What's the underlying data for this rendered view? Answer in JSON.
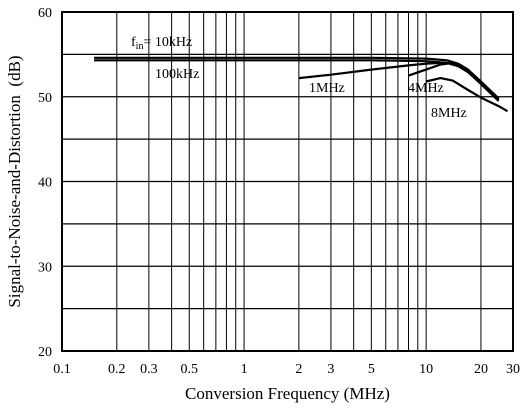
{
  "chart_data": {
    "type": "line",
    "xlabel": "Conversion Frequency (MHz)",
    "ylabel": "Signal-to-Noise-and-Distortion  (dB)",
    "x_scale": "log",
    "xlim": [
      0.1,
      30
    ],
    "ylim": [
      20,
      60
    ],
    "grid": true,
    "x_ticks": [
      {
        "value": 0.1,
        "label": "0.1"
      },
      {
        "value": 0.2,
        "label": "0.2"
      },
      {
        "value": 0.3,
        "label": "0.3"
      },
      {
        "value": 0.5,
        "label": "0.5"
      },
      {
        "value": 1,
        "label": "1"
      },
      {
        "value": 2,
        "label": "2"
      },
      {
        "value": 3,
        "label": "3"
      },
      {
        "value": 5,
        "label": "5"
      },
      {
        "value": 10,
        "label": "10"
      },
      {
        "value": 20,
        "label": "20"
      },
      {
        "value": 30,
        "label": "30"
      }
    ],
    "y_ticks": [
      {
        "value": 20,
        "label": "20"
      },
      {
        "value": 30,
        "label": "30"
      },
      {
        "value": 40,
        "label": "40"
      },
      {
        "value": 50,
        "label": "50"
      },
      {
        "value": 60,
        "label": "60"
      }
    ],
    "series": [
      {
        "name": "fin=10kHz",
        "label_main": "f",
        "label_sub": "in",
        "label_rest": "= 10kHz",
        "x": [
          0.15,
          1,
          5,
          10,
          13,
          15,
          17,
          20,
          25
        ],
        "y": [
          54.6,
          54.6,
          54.6,
          54.5,
          54.3,
          53.9,
          53.2,
          51.7,
          49.6
        ]
      },
      {
        "name": "100kHz",
        "label_main": "100kHz",
        "x": [
          0.15,
          1,
          5,
          10,
          13,
          15,
          17,
          20,
          25
        ],
        "y": [
          54.3,
          54.3,
          54.3,
          54.2,
          54.0,
          53.6,
          52.9,
          51.5,
          49.5
        ]
      },
      {
        "name": "1MHz",
        "label_main": "1MHz",
        "x": [
          2,
          3,
          5,
          8,
          10,
          12,
          14,
          16,
          18,
          20,
          25
        ],
        "y": [
          52.2,
          52.6,
          53.2,
          53.7,
          53.9,
          54.0,
          53.9,
          53.4,
          52.6,
          51.8,
          49.8
        ]
      },
      {
        "name": "4MHz",
        "label_main": "4MHz",
        "x": [
          8,
          10,
          12,
          14,
          16,
          18,
          20,
          25
        ],
        "y": [
          52.5,
          53.2,
          53.8,
          54.0,
          53.5,
          52.7,
          51.8,
          49.7
        ]
      },
      {
        "name": "8MHz",
        "label_main": "8MHz",
        "x": [
          10,
          12,
          14,
          17,
          20,
          25,
          28
        ],
        "y": [
          51.8,
          52.2,
          51.9,
          50.8,
          49.9,
          48.9,
          48.3
        ]
      }
    ]
  }
}
